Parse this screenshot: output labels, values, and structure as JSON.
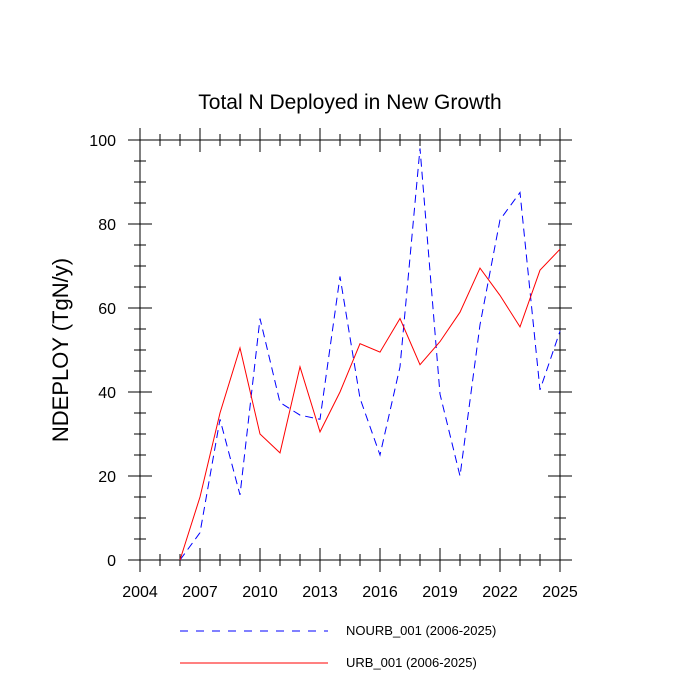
{
  "chart_data": {
    "type": "line",
    "title": "Total N Deployed in New Growth",
    "xlabel": "",
    "ylabel": "NDEPLOY  (TgN/y)",
    "xlim": [
      2004,
      2025
    ],
    "ylim": [
      0,
      100
    ],
    "x_ticks": [
      2004,
      2007,
      2010,
      2013,
      2016,
      2019,
      2022,
      2025
    ],
    "y_ticks": [
      0,
      20,
      40,
      60,
      80,
      100
    ],
    "x_tick_labels": [
      "2004",
      "2007",
      "2010",
      "2013",
      "2016",
      "2019",
      "2022",
      "2025"
    ],
    "y_tick_labels": [
      "0",
      "20",
      "40",
      "60",
      "80",
      "100"
    ],
    "grid": false,
    "legend_position": "bottom",
    "series": [
      {
        "name": "NOURB_001 (2006-2025)",
        "color": "#0000ff",
        "style": "dashed",
        "x": [
          2006,
          2007,
          2008,
          2009,
          2010,
          2011,
          2012,
          2013,
          2014,
          2015,
          2016,
          2017,
          2018,
          2019,
          2020,
          2021,
          2022,
          2023,
          2024,
          2025
        ],
        "values": [
          0,
          6.5,
          33.5,
          15.5,
          57.5,
          37.5,
          34.5,
          33.5,
          67.5,
          38.5,
          25,
          46,
          98,
          39.5,
          20,
          56,
          81,
          87.5,
          40.5,
          54.5
        ]
      },
      {
        "name": "URB_001 (2006-2025)",
        "color": "#ff0000",
        "style": "solid",
        "x": [
          2006,
          2007,
          2008,
          2009,
          2010,
          2011,
          2012,
          2013,
          2014,
          2015,
          2016,
          2017,
          2018,
          2019,
          2020,
          2021,
          2022,
          2023,
          2024,
          2025
        ],
        "values": [
          0,
          15,
          35,
          50.5,
          30,
          25.5,
          46,
          30.5,
          40,
          51.5,
          49.5,
          57.5,
          46.5,
          52,
          59,
          69.5,
          63,
          55.5,
          69,
          74
        ]
      }
    ]
  }
}
